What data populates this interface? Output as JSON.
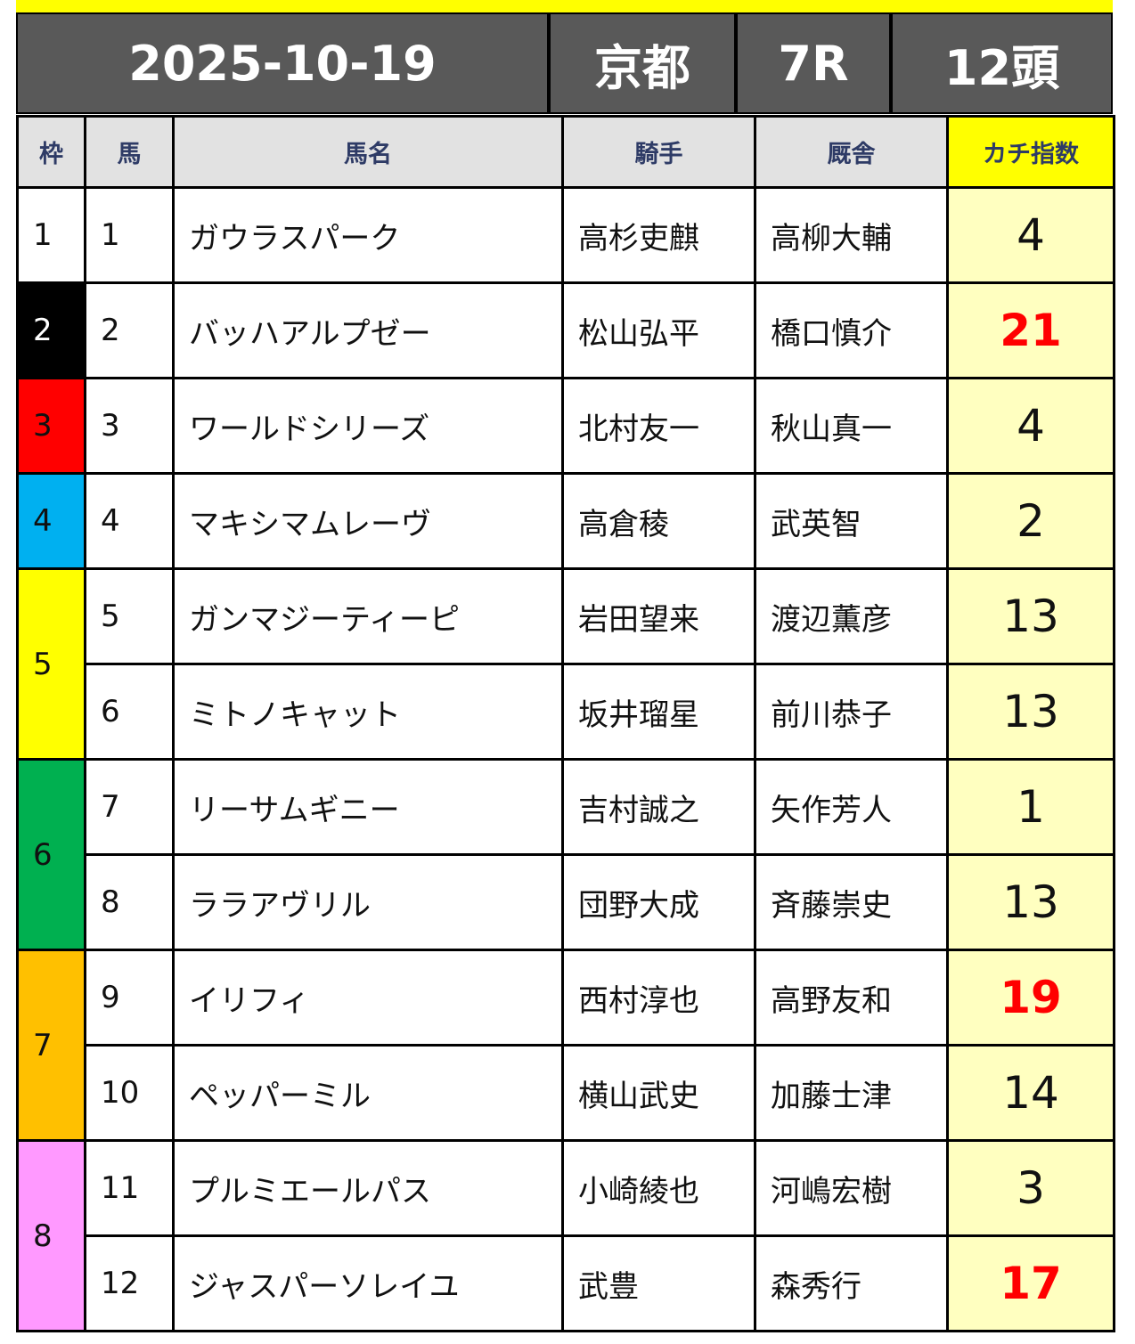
{
  "header": {
    "date": "2025-10-19",
    "venue": "京都",
    "race": "7R",
    "runners": "12頭"
  },
  "columns": [
    "枠",
    "馬",
    "馬名",
    "騎手",
    "厩舎",
    "カチ指数"
  ],
  "waku_colors": {
    "1": "#ffffff",
    "2": "#000000",
    "3": "#ff0000",
    "4": "#00b0f0",
    "5": "#ffff00",
    "6": "#00b050",
    "7": "#ffc000",
    "8": "#ff99ff"
  },
  "waku_text_colors": {
    "1": "#111111",
    "2": "#ffffff",
    "3": "#111111",
    "4": "#111111",
    "5": "#111111",
    "6": "#111111",
    "7": "#111111",
    "8": "#111111"
  },
  "highlight_color": "#ff0000",
  "rows": [
    {
      "waku": "1",
      "uma": "1",
      "name": "ガウラスパーク",
      "jockey": "高杉吏麒",
      "trainer": "高柳大輔",
      "score": "4",
      "highlight": false
    },
    {
      "waku": "2",
      "uma": "2",
      "name": "バッハアルプゼー",
      "jockey": "松山弘平",
      "trainer": "橋口慎介",
      "score": "21",
      "highlight": true
    },
    {
      "waku": "3",
      "uma": "3",
      "name": "ワールドシリーズ",
      "jockey": "北村友一",
      "trainer": "秋山真一",
      "score": "4",
      "highlight": false
    },
    {
      "waku": "4",
      "uma": "4",
      "name": "マキシマムレーヴ",
      "jockey": "高倉稜",
      "trainer": "武英智",
      "score": "2",
      "highlight": false
    },
    {
      "waku": "5",
      "uma": "5",
      "name": "ガンマジーティーピ",
      "jockey": "岩田望来",
      "trainer": "渡辺薫彦",
      "score": "13",
      "highlight": false
    },
    {
      "waku": "5",
      "uma": "6",
      "name": "ミトノキャット",
      "jockey": "坂井瑠星",
      "trainer": "前川恭子",
      "score": "13",
      "highlight": false
    },
    {
      "waku": "6",
      "uma": "7",
      "name": "リーサムギニー",
      "jockey": "吉村誠之",
      "trainer": "矢作芳人",
      "score": "1",
      "highlight": false
    },
    {
      "waku": "6",
      "uma": "8",
      "name": "ララアヴリル",
      "jockey": "団野大成",
      "trainer": "斉藤崇史",
      "score": "13",
      "highlight": false
    },
    {
      "waku": "7",
      "uma": "9",
      "name": "イリフィ",
      "jockey": "西村淳也",
      "trainer": "高野友和",
      "score": "19",
      "highlight": true
    },
    {
      "waku": "7",
      "uma": "10",
      "name": "ペッパーミル",
      "jockey": "横山武史",
      "trainer": "加藤士津",
      "score": "14",
      "highlight": false
    },
    {
      "waku": "8",
      "uma": "11",
      "name": "プルミエールパス",
      "jockey": "小崎綾也",
      "trainer": "河嶋宏樹",
      "score": "3",
      "highlight": false
    },
    {
      "waku": "8",
      "uma": "12",
      "name": "ジャスパーソレイユ",
      "jockey": "武豊",
      "trainer": "森秀行",
      "score": "17",
      "highlight": true
    }
  ]
}
